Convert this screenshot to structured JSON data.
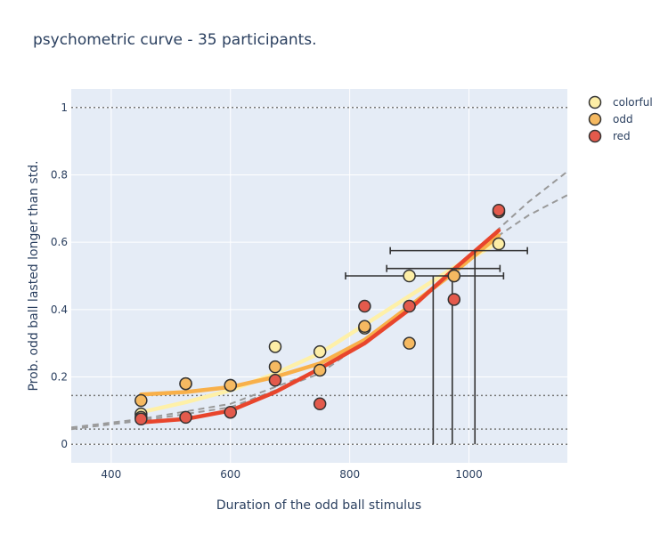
{
  "chart_data": {
    "type": "scatter",
    "title": "psychometric curve - 35 participants.",
    "xlabel": "Duration of the odd ball stimulus",
    "ylabel": "Prob. odd ball lasted longer than std.",
    "xlim": [
      333,
      1165
    ],
    "ylim": [
      -0.055,
      1.055
    ],
    "x_ticks": [
      400,
      600,
      800,
      1000
    ],
    "y_ticks": [
      0,
      0.2,
      0.4,
      0.6,
      0.8,
      1
    ],
    "grid": true,
    "legend_position": "top-right",
    "colors": {
      "plot_bg": "#e5ecf6",
      "grid": "#ffffff",
      "reference_line": "#777777",
      "dashed_fit": "#999999",
      "error_bar": "#333333",
      "marker_edge": "#333333"
    },
    "reference_lines_y": [
      1,
      0.145,
      0.045,
      0
    ],
    "series": [
      {
        "name": "colorful",
        "color": "#fdeea6",
        "line_color": "#fef0a8",
        "points": {
          "x": [
            450,
            450,
            525,
            600,
            675,
            750,
            825,
            900,
            975,
            1050
          ],
          "y": [
            0.09,
            0.08,
            0.18,
            0.175,
            0.29,
            0.275,
            0.345,
            0.5,
            0.5,
            0.595
          ]
        },
        "fit": {
          "x": [
            450,
            525,
            600,
            675,
            750,
            825,
            900,
            975,
            1050
          ],
          "y": [
            0.095,
            0.125,
            0.16,
            0.21,
            0.27,
            0.355,
            0.44,
            0.525,
            0.6
          ]
        },
        "ci_y": 0.575,
        "ci_x": [
          868,
          1098
        ],
        "pse_x": 1010
      },
      {
        "name": "odd",
        "color": "#f5b961",
        "line_color": "#f8b04a",
        "points": {
          "x": [
            450,
            525,
            600,
            675,
            750,
            825,
            900,
            975,
            1050
          ],
          "y": [
            0.13,
            0.18,
            0.175,
            0.23,
            0.22,
            0.35,
            0.3,
            0.5,
            0.69
          ]
        },
        "fit": {
          "x": [
            450,
            525,
            600,
            675,
            750,
            825,
            900,
            975,
            1050
          ],
          "y": [
            0.148,
            0.155,
            0.17,
            0.2,
            0.24,
            0.31,
            0.41,
            0.51,
            0.62
          ]
        },
        "ci_y": 0.522,
        "ci_x": [
          862,
          1052
        ],
        "pse_x": 972
      },
      {
        "name": "red",
        "color": "#e35a4c",
        "line_color": "#e8452c",
        "points": {
          "x": [
            450,
            525,
            600,
            675,
            750,
            825,
            900,
            975,
            1050
          ],
          "y": [
            0.075,
            0.08,
            0.095,
            0.19,
            0.12,
            0.41,
            0.41,
            0.43,
            0.695
          ]
        },
        "fit": {
          "x": [
            450,
            525,
            600,
            675,
            750,
            825,
            900,
            975,
            1050
          ],
          "y": [
            0.065,
            0.075,
            0.1,
            0.155,
            0.225,
            0.3,
            0.4,
            0.52,
            0.635
          ]
        },
        "ci_y": 0.5,
        "ci_x": [
          793,
          1058
        ],
        "pse_x": 940
      }
    ],
    "dashed_fits": [
      {
        "x": [
          333,
          450,
          600,
          750,
          900,
          1000,
          1050,
          1100,
          1165
        ],
        "y": [
          0.05,
          0.075,
          0.12,
          0.22,
          0.4,
          0.55,
          0.64,
          0.72,
          0.81
        ]
      },
      {
        "x": [
          333,
          450,
          600,
          750,
          900,
          1000,
          1050,
          1100,
          1165
        ],
        "y": [
          0.045,
          0.07,
          0.11,
          0.21,
          0.4,
          0.55,
          0.62,
          0.68,
          0.74
        ]
      }
    ]
  }
}
